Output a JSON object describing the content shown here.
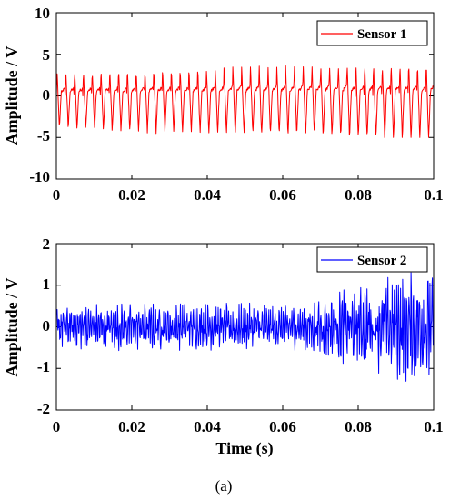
{
  "chart_data": [
    {
      "type": "line",
      "ylabel": "Amplitude / V",
      "xlabel": "",
      "xlim": [
        0,
        0.1
      ],
      "ylim": [
        -10,
        10
      ],
      "x_ticks": [
        "0",
        "0.02",
        "0.04",
        "0.06",
        "0.08",
        "0.1"
      ],
      "y_ticks": [
        "-10",
        "-5",
        "0",
        "5",
        "10"
      ],
      "x_tick_values": [
        0,
        0.02,
        0.04,
        0.06,
        0.08,
        0.1
      ],
      "y_tick_values": [
        -10,
        -5,
        0,
        5,
        10
      ],
      "grid": false,
      "legend_position": "top-right",
      "series": [
        {
          "name": "Sensor 1",
          "color": "#ff0000",
          "waveform": "periodic sawtooth-like pulse, approx. 428 Hz, peaks 2.5–4.5 V, troughs -3 to -5 V, amplitude increasing slightly with time",
          "approx_pulse_period_s": 0.00233,
          "approx_min": -5.0,
          "approx_max": 4.6
        }
      ]
    },
    {
      "type": "line",
      "ylabel": "Amplitude / V",
      "xlabel": "Time (s)",
      "xlim": [
        0,
        0.1
      ],
      "ylim": [
        -2,
        2
      ],
      "x_ticks": [
        "0",
        "0.02",
        "0.04",
        "0.06",
        "0.08",
        "0.1"
      ],
      "y_ticks": [
        "-2",
        "-1",
        "0",
        "1",
        "2"
      ],
      "x_tick_values": [
        0,
        0.02,
        0.04,
        0.06,
        0.08,
        0.1
      ],
      "y_tick_values": [
        -2,
        -1,
        0,
        1,
        2
      ],
      "grid": false,
      "legend_position": "top-right",
      "series": [
        {
          "name": "Sensor 2",
          "color": "#0000ff",
          "waveform": "noisy oscillation, amplitude ~0.5 V until 0.065 s, growing to ~1.3 V after 0.07 s",
          "approx_min": -1.45,
          "approx_max": 1.3
        }
      ]
    }
  ],
  "caption": "(a)"
}
